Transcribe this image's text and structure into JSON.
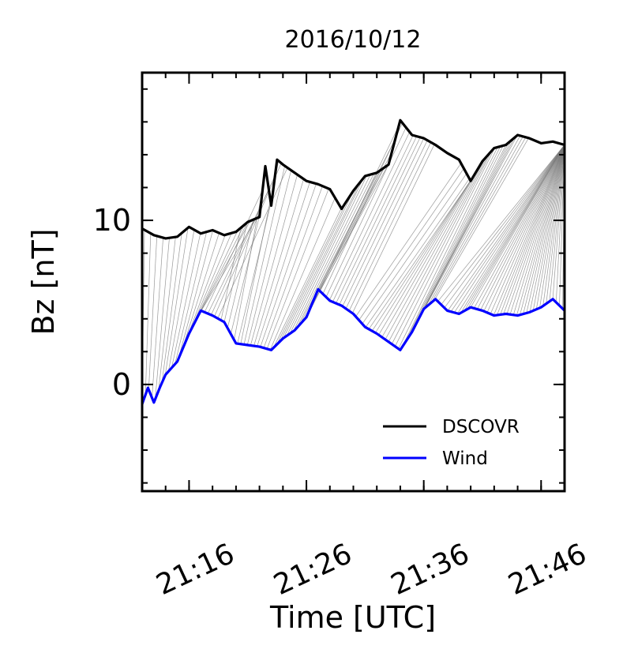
{
  "chart_data": {
    "type": "line",
    "title": "2016/10/12",
    "xlabel": "Time [UTC]",
    "ylabel": "Bz [nT]",
    "x_unit": "minutes",
    "xlim": [
      "21:12",
      "21:48"
    ],
    "ylim": [
      -6.5,
      19
    ],
    "x_ticks": [
      "21:16",
      "21:26",
      "21:36",
      "21:46"
    ],
    "y_ticks": [
      0,
      10
    ],
    "grid": false,
    "legend_position": "lower-right",
    "connectors": true,
    "series": [
      {
        "name": "DSCOVR",
        "color": "#000000",
        "times": [
          "21:12",
          "21:13",
          "21:14",
          "21:15",
          "21:16",
          "21:17",
          "21:18",
          "21:19",
          "21:20",
          "21:21",
          "21:22",
          "21:22:30",
          "21:23",
          "21:23:30",
          "21:24",
          "21:25",
          "21:26",
          "21:27",
          "21:28",
          "21:29",
          "21:30",
          "21:31",
          "21:32",
          "21:33",
          "21:34",
          "21:35",
          "21:36",
          "21:37",
          "21:38",
          "21:39",
          "21:40",
          "21:41",
          "21:42",
          "21:43",
          "21:44",
          "21:45",
          "21:46",
          "21:47",
          "21:48"
        ],
        "values": [
          9.5,
          9.1,
          8.9,
          9.0,
          9.6,
          9.2,
          9.4,
          9.1,
          9.3,
          9.9,
          10.2,
          13.3,
          10.9,
          13.7,
          13.4,
          12.9,
          12.4,
          12.2,
          11.9,
          10.7,
          11.8,
          12.7,
          12.9,
          13.4,
          16.1,
          15.2,
          15.0,
          14.6,
          14.1,
          13.7,
          12.4,
          13.6,
          14.4,
          14.6,
          15.2,
          15.0,
          14.7,
          14.8,
          14.6
        ]
      },
      {
        "name": "Wind",
        "color": "#0000ff",
        "times": [
          "21:12",
          "21:12:30",
          "21:13",
          "21:13:30",
          "21:14",
          "21:15",
          "21:16",
          "21:17",
          "21:18",
          "21:19",
          "21:20",
          "21:21",
          "21:22",
          "21:23",
          "21:24",
          "21:25",
          "21:26",
          "21:27",
          "21:28",
          "21:29",
          "21:30",
          "21:31",
          "21:32",
          "21:33",
          "21:34",
          "21:35",
          "21:36",
          "21:37",
          "21:38",
          "21:39",
          "21:40",
          "21:41",
          "21:42",
          "21:43",
          "21:44",
          "21:45",
          "21:46",
          "21:47",
          "21:48"
        ],
        "values": [
          -1.2,
          -0.2,
          -1.1,
          -0.2,
          0.6,
          1.4,
          3.1,
          4.5,
          4.2,
          3.8,
          2.5,
          2.4,
          2.3,
          2.1,
          2.8,
          3.3,
          4.1,
          5.8,
          5.1,
          4.8,
          4.3,
          3.5,
          3.1,
          2.6,
          2.1,
          3.2,
          4.6,
          5.2,
          4.5,
          4.3,
          4.7,
          4.5,
          4.2,
          4.3,
          4.2,
          4.4,
          4.7,
          5.2,
          4.5
        ]
      }
    ]
  }
}
